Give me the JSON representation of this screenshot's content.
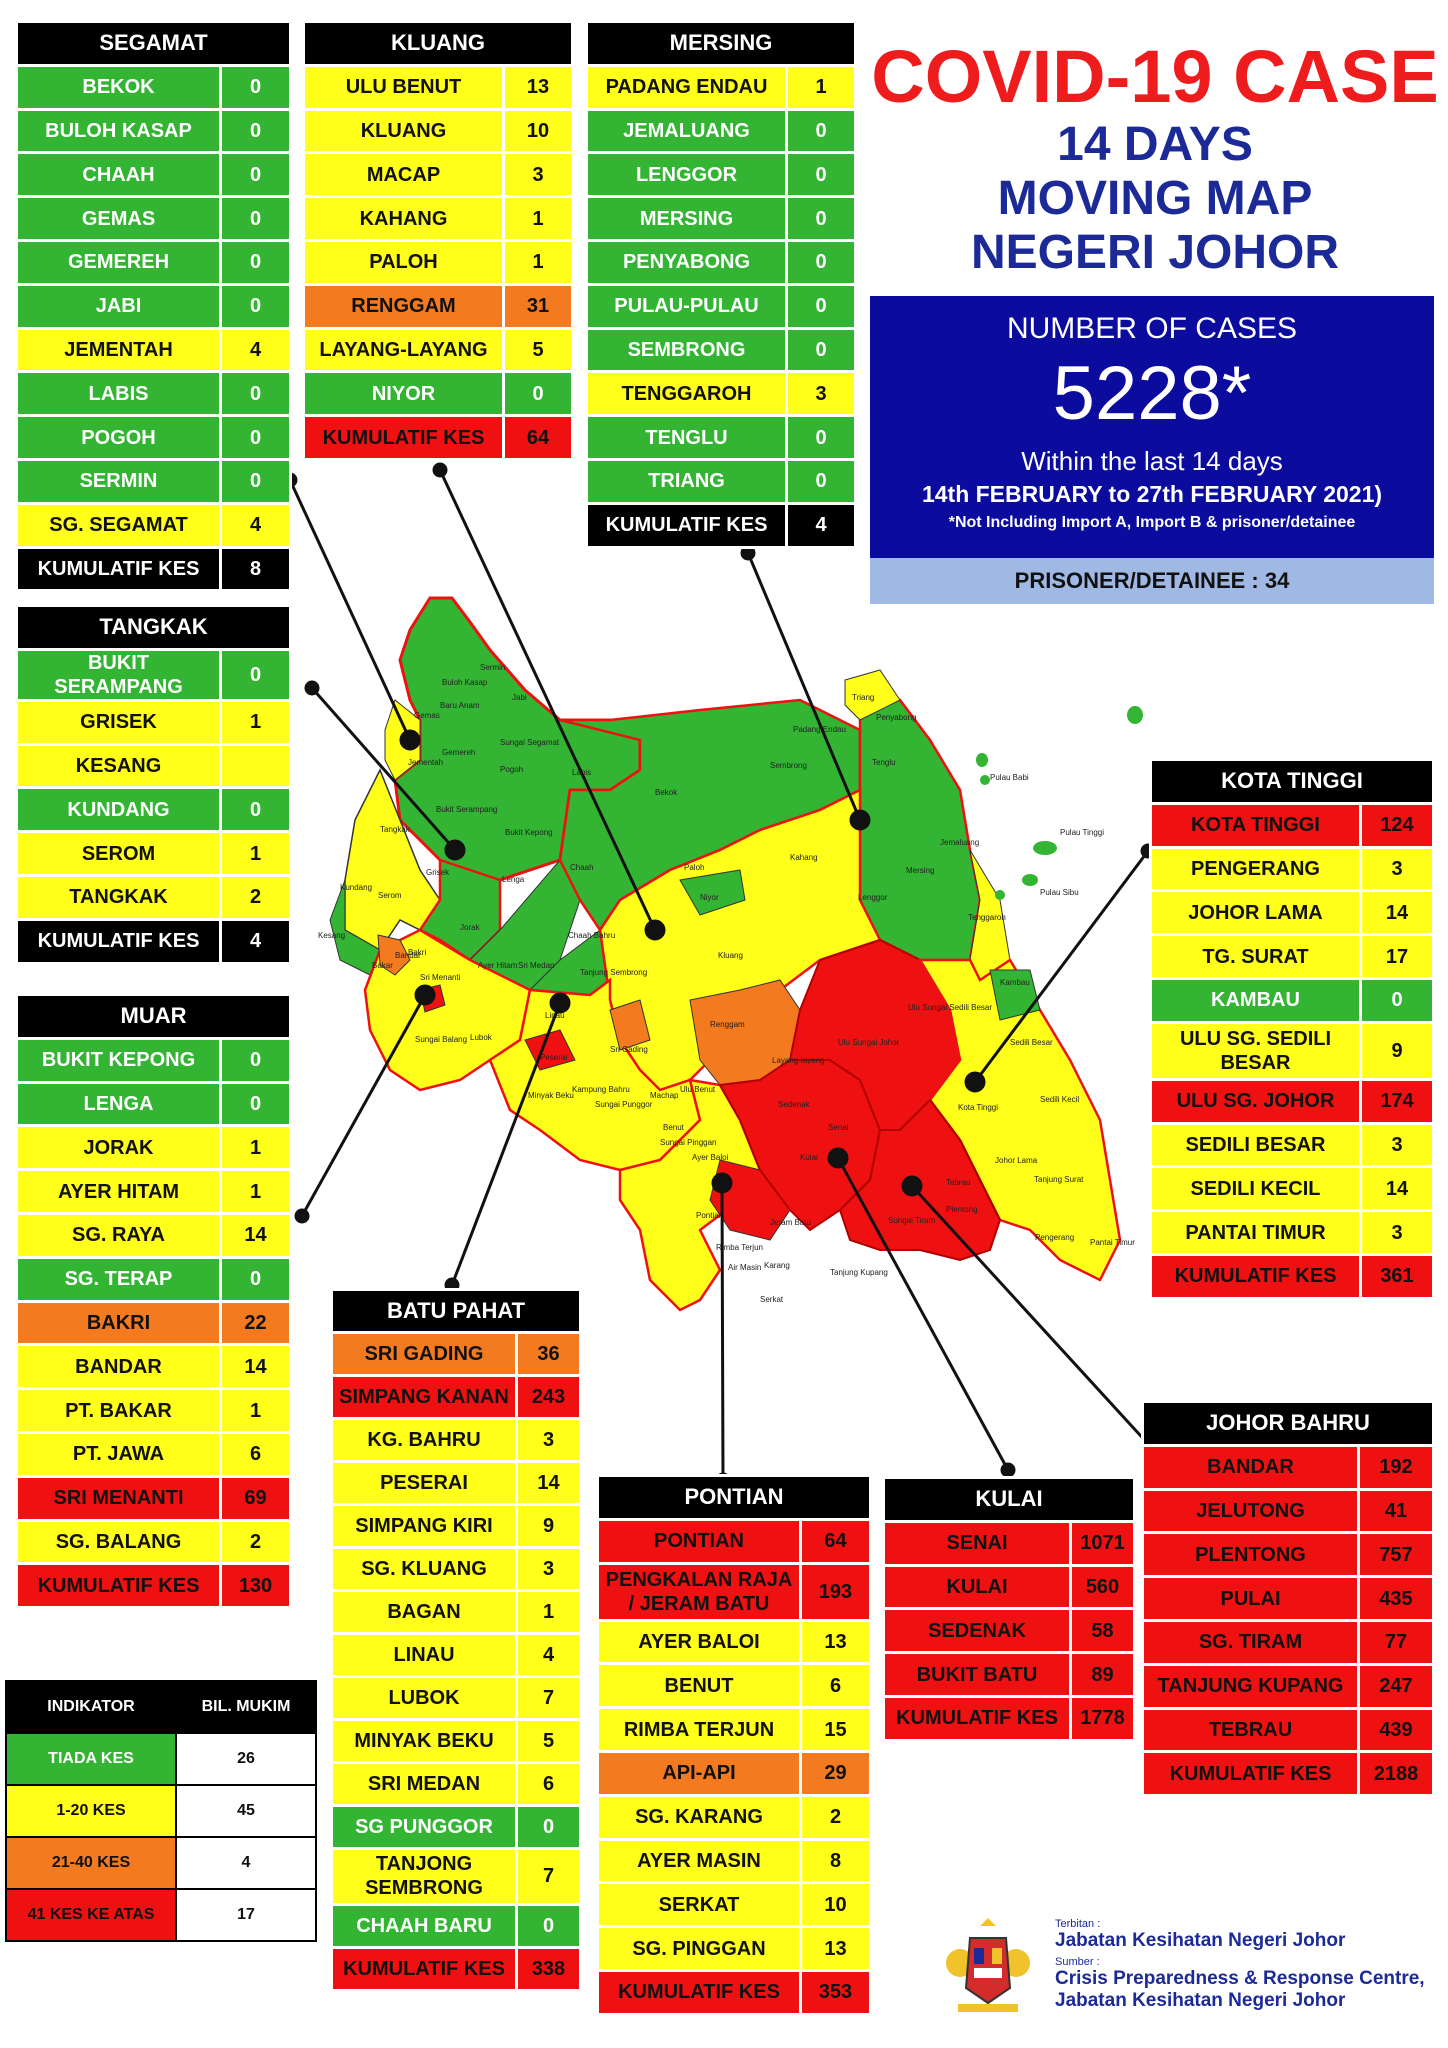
{
  "title": {
    "line1": "COVID-19 CASE",
    "line2": "14 DAYS",
    "line3": "MOVING MAP",
    "line4": "NEGERI JOHOR"
  },
  "summary": {
    "label": "NUMBER OF CASES",
    "number": "5228*",
    "within": "Within the last 14 days",
    "period": "14th FEBRUARY to 27th FEBRUARY 2021)",
    "note": "*Not Including Import A, Import B & prisoner/detainee",
    "prisoner": "PRISONER/DETAINEE : 34"
  },
  "colors": {
    "green": "#33b433",
    "yellow": "#ffff1a",
    "orange": "#f47a20",
    "red": "#ef1111",
    "black": "#000000",
    "title_red": "#ee1c1c",
    "title_blue": "#1c2a98",
    "panel_blue": "#0b0b9e"
  },
  "districts": {
    "segamat": {
      "name": "SEGAMAT",
      "rows": [
        {
          "name": "BEKOK",
          "value": "0",
          "c": "G"
        },
        {
          "name": "BULOH KASAP",
          "value": "0",
          "c": "G"
        },
        {
          "name": "CHAAH",
          "value": "0",
          "c": "G"
        },
        {
          "name": "GEMAS",
          "value": "0",
          "c": "G"
        },
        {
          "name": "GEMEREH",
          "value": "0",
          "c": "G"
        },
        {
          "name": "JABI",
          "value": "0",
          "c": "G"
        },
        {
          "name": "JEMENTAH",
          "value": "4",
          "c": "Y"
        },
        {
          "name": "LABIS",
          "value": "0",
          "c": "G"
        },
        {
          "name": "POGOH",
          "value": "0",
          "c": "G"
        },
        {
          "name": "SERMIN",
          "value": "0",
          "c": "G"
        },
        {
          "name": "SG. SEGAMAT",
          "value": "4",
          "c": "Y"
        },
        {
          "name": "KUMULATIF KES",
          "value": "8",
          "c": "B"
        }
      ]
    },
    "kluang": {
      "name": "KLUANG",
      "rows": [
        {
          "name": "ULU BENUT",
          "value": "13",
          "c": "Y"
        },
        {
          "name": "KLUANG",
          "value": "10",
          "c": "Y"
        },
        {
          "name": "MACAP",
          "value": "3",
          "c": "Y"
        },
        {
          "name": "KAHANG",
          "value": "1",
          "c": "Y"
        },
        {
          "name": "PALOH",
          "value": "1",
          "c": "Y"
        },
        {
          "name": "RENGGAM",
          "value": "31",
          "c": "O"
        },
        {
          "name": "LAYANG-LAYANG",
          "value": "5",
          "c": "Y"
        },
        {
          "name": "NIYOR",
          "value": "0",
          "c": "G"
        },
        {
          "name": "KUMULATIF KES",
          "value": "64",
          "c": "R"
        }
      ]
    },
    "mersing": {
      "name": "MERSING",
      "rows": [
        {
          "name": "PADANG ENDAU",
          "value": "1",
          "c": "Y"
        },
        {
          "name": "JEMALUANG",
          "value": "0",
          "c": "G"
        },
        {
          "name": "LENGGOR",
          "value": "0",
          "c": "G"
        },
        {
          "name": "MERSING",
          "value": "0",
          "c": "G"
        },
        {
          "name": "PENYABONG",
          "value": "0",
          "c": "G"
        },
        {
          "name": "PULAU-PULAU",
          "value": "0",
          "c": "G"
        },
        {
          "name": "SEMBRONG",
          "value": "0",
          "c": "G"
        },
        {
          "name": "TENGGAROH",
          "value": "3",
          "c": "Y"
        },
        {
          "name": "TENGLU",
          "value": "0",
          "c": "G"
        },
        {
          "name": "TRIANG",
          "value": "0",
          "c": "G"
        },
        {
          "name": "KUMULATIF KES",
          "value": "4",
          "c": "B"
        }
      ]
    },
    "tangkak": {
      "name": "TANGKAK",
      "rows": [
        {
          "name": "BUKIT SERAMPANG",
          "value": "0",
          "c": "G"
        },
        {
          "name": "GRISEK",
          "value": "1",
          "c": "Y"
        },
        {
          "name": "KESANG",
          "value": "",
          "c": "Y"
        },
        {
          "name": "KUNDANG",
          "value": "0",
          "c": "G"
        },
        {
          "name": "SEROM",
          "value": "1",
          "c": "Y"
        },
        {
          "name": "TANGKAK",
          "value": "2",
          "c": "Y"
        },
        {
          "name": "KUMULATIF KES",
          "value": "4",
          "c": "B"
        }
      ]
    },
    "muar": {
      "name": "MUAR",
      "rows": [
        {
          "name": "BUKIT KEPONG",
          "value": "0",
          "c": "G"
        },
        {
          "name": "LENGA",
          "value": "0",
          "c": "G"
        },
        {
          "name": "JORAK",
          "value": "1",
          "c": "Y"
        },
        {
          "name": "AYER HITAM",
          "value": "1",
          "c": "Y"
        },
        {
          "name": "SG. RAYA",
          "value": "14",
          "c": "Y"
        },
        {
          "name": "SG. TERAP",
          "value": "0",
          "c": "G"
        },
        {
          "name": "BAKRI",
          "value": "22",
          "c": "O"
        },
        {
          "name": "BANDAR",
          "value": "14",
          "c": "Y"
        },
        {
          "name": "PT. BAKAR",
          "value": "1",
          "c": "Y"
        },
        {
          "name": "PT. JAWA",
          "value": "6",
          "c": "Y"
        },
        {
          "name": "SRI MENANTI",
          "value": "69",
          "c": "R"
        },
        {
          "name": "SG. BALANG",
          "value": "2",
          "c": "Y"
        },
        {
          "name": "KUMULATIF KES",
          "value": "130",
          "c": "R"
        }
      ]
    },
    "batupahat": {
      "name": "BATU PAHAT",
      "rows": [
        {
          "name": "SRI GADING",
          "value": "36",
          "c": "O"
        },
        {
          "name": "SIMPANG KANAN",
          "value": "243",
          "c": "R"
        },
        {
          "name": "KG. BAHRU",
          "value": "3",
          "c": "Y"
        },
        {
          "name": "PESERAI",
          "value": "14",
          "c": "Y"
        },
        {
          "name": "SIMPANG KIRI",
          "value": "9",
          "c": "Y"
        },
        {
          "name": "SG. KLUANG",
          "value": "3",
          "c": "Y"
        },
        {
          "name": "BAGAN",
          "value": "1",
          "c": "Y"
        },
        {
          "name": "LINAU",
          "value": "4",
          "c": "Y"
        },
        {
          "name": "LUBOK",
          "value": "7",
          "c": "Y"
        },
        {
          "name": "MINYAK BEKU",
          "value": "5",
          "c": "Y"
        },
        {
          "name": "SRI MEDAN",
          "value": "6",
          "c": "Y"
        },
        {
          "name": "SG PUNGGOR",
          "value": "0",
          "c": "G"
        },
        {
          "name": "TANJONG SEMBRONG",
          "value": "7",
          "c": "Y"
        },
        {
          "name": "CHAAH BARU",
          "value": "0",
          "c": "G"
        },
        {
          "name": "KUMULATIF KES",
          "value": "338",
          "c": "R"
        }
      ]
    },
    "pontian": {
      "name": "PONTIAN",
      "rows": [
        {
          "name": "PONTIAN",
          "value": "64",
          "c": "R"
        },
        {
          "name": "PENGKALAN RAJA / JERAM BATU",
          "value": "193",
          "c": "R"
        },
        {
          "name": "AYER BALOI",
          "value": "13",
          "c": "Y"
        },
        {
          "name": "BENUT",
          "value": "6",
          "c": "Y"
        },
        {
          "name": "RIMBA TERJUN",
          "value": "15",
          "c": "Y"
        },
        {
          "name": "API-API",
          "value": "29",
          "c": "O"
        },
        {
          "name": "SG. KARANG",
          "value": "2",
          "c": "Y"
        },
        {
          "name": "AYER MASIN",
          "value": "8",
          "c": "Y"
        },
        {
          "name": "SERKAT",
          "value": "10",
          "c": "Y"
        },
        {
          "name": "SG. PINGGAN",
          "value": "13",
          "c": "Y"
        },
        {
          "name": "KUMULATIF KES",
          "value": "353",
          "c": "R"
        }
      ]
    },
    "kulai": {
      "name": "KULAI",
      "rows": [
        {
          "name": "SENAI",
          "value": "1071",
          "c": "R"
        },
        {
          "name": "KULAI",
          "value": "560",
          "c": "R"
        },
        {
          "name": "SEDENAK",
          "value": "58",
          "c": "R"
        },
        {
          "name": "BUKIT BATU",
          "value": "89",
          "c": "R"
        },
        {
          "name": "KUMULATIF KES",
          "value": "1778",
          "c": "R"
        }
      ]
    },
    "kotatinggi": {
      "name": "KOTA TINGGI",
      "rows": [
        {
          "name": "KOTA TINGGI",
          "value": "124",
          "c": "R"
        },
        {
          "name": "PENGERANG",
          "value": "3",
          "c": "Y"
        },
        {
          "name": "JOHOR LAMA",
          "value": "14",
          "c": "Y"
        },
        {
          "name": "TG. SURAT",
          "value": "17",
          "c": "Y"
        },
        {
          "name": "KAMBAU",
          "value": "0",
          "c": "G"
        },
        {
          "name": "ULU SG. SEDILI BESAR",
          "value": "9",
          "c": "Y"
        },
        {
          "name": "ULU  SG. JOHOR",
          "value": "174",
          "c": "R"
        },
        {
          "name": "SEDILI BESAR",
          "value": "3",
          "c": "Y"
        },
        {
          "name": "SEDILI KECIL",
          "value": "14",
          "c": "Y"
        },
        {
          "name": "PANTAI TIMUR",
          "value": "3",
          "c": "Y"
        },
        {
          "name": "KUMULATIF KES",
          "value": "361",
          "c": "R"
        }
      ]
    },
    "johorbahru": {
      "name": "JOHOR BAHRU",
      "rows": [
        {
          "name": "BANDAR",
          "value": "192",
          "c": "R"
        },
        {
          "name": "JELUTONG",
          "value": "41",
          "c": "R"
        },
        {
          "name": "PLENTONG",
          "value": "757",
          "c": "R"
        },
        {
          "name": "PULAI",
          "value": "435",
          "c": "R"
        },
        {
          "name": "SG. TIRAM",
          "value": "77",
          "c": "R"
        },
        {
          "name": "TANJUNG KUPANG",
          "value": "247",
          "c": "R"
        },
        {
          "name": "TEBRAU",
          "value": "439",
          "c": "R"
        },
        {
          "name": "KUMULATIF KES",
          "value": "2188",
          "c": "R"
        }
      ]
    }
  },
  "legend": {
    "col1": "INDIKATOR",
    "col2": "BIL. MUKIM",
    "rows": [
      {
        "label": "TIADA KES",
        "count": "26",
        "c": "G"
      },
      {
        "label": "1-20 KES",
        "count": "45",
        "c": "Y"
      },
      {
        "label": "21-40 KES",
        "count": "4",
        "c": "O"
      },
      {
        "label": "41 KES KE ATAS",
        "count": "17",
        "c": "R"
      }
    ]
  },
  "map": {
    "labels": {
      "gemas": "Gemas",
      "buloh_kasap": "Buloh Kasap",
      "sermin": "Sermin",
      "jabi": "Jabi",
      "baru_anam": "Baru Anam",
      "jementah": "Jementah",
      "gemereh": "Gemereh",
      "sungai_segamat": "Sungai Segamat",
      "pogoh": "Pogoh",
      "labis": "Labis",
      "bekok": "Bekok",
      "chaah": "Chaah",
      "padang_endau": "Padang Endau",
      "triang": "Triang",
      "penyabong": "Penyabong",
      "tenglu": "Tenglu",
      "sembrong": "Sembrong",
      "pulau_babi": "Pulau Babi",
      "pulau_tinggi": "Pulau Tinggi",
      "pulau_sibu": "Pulau Sibu",
      "jemaluang": "Jemaluang",
      "mersing": "Mersing",
      "lenggor": "Lenggor",
      "tenggaroh": "Tenggaroh",
      "kahang": "Kahang",
      "paloh": "Paloh",
      "niyor": "Niyor",
      "kluang": "Kluang",
      "renggam": "Renggam",
      "layang_layang": "Layang-layang",
      "ulu_benut": "Ulu Benut",
      "machap": "Machap",
      "tangkak": "Tangkak",
      "bukit_serampang": "Bukit Serampang",
      "bukit_kepong": "Bukit Kepong",
      "grisek": "Grisek",
      "lenga": "Lenga",
      "serom": "Serom",
      "kundang": "Kundang",
      "kesang": "Kesang",
      "jorak": "Jorak",
      "bakri": "Bakri",
      "sri_menanti": "Sri Menanti",
      "ayer_hitam": "Ayer Hitam",
      "chaah_bahru": "Chaah Bahru",
      "sri_medan": "Sri Medan",
      "tanjung_sembrong": "Tanjung Sembrong",
      "sri_gading": "Sri Gading",
      "sungai_balang": "Sungai Balang",
      "sungai_punggor": "Sungai Punggor",
      "minyak_beku": "Minyak Beku",
      "kampung_bahru": "Kampung Bahru",
      "peserai": "Peserai",
      "lubok": "Lubok",
      "linau": "Linau",
      "benut": "Benut",
      "sungai_pinggan": "Sungai Pinggan",
      "ayer_baloi": "Ayer Baloi",
      "pontian": "Pontian",
      "rimba_terjun": "Rimba Terjun",
      "serkat": "Serkat",
      "air_masin": "Air Masin",
      "karang": "Karang",
      "jeram_batu": "Jeram Batu",
      "sedenak": "Sedenak",
      "kulai": "Kulai",
      "senai": "Senai",
      "ulu_sungai_johor": "Ulu Sungai Johor",
      "ulu_sungai_sedili": "Ulu Sungai Sedili Besar",
      "kota_tinggi": "Kota Tinggi",
      "sedili_besar": "Sedili Besar",
      "sedili_kecil": "Sedili Kecil",
      "johor_lama": "Johor Lama",
      "tanjung_surat": "Tanjung Surat",
      "pengerang": "Pengerang",
      "pantai_timur": "Pantai Timur",
      "kambau": "Kambau",
      "tebrau": "Tebrau",
      "plentong": "Plentong",
      "tanjung_kupang": "Tanjung Kupang",
      "sungai_tiram": "Sungai Tiram",
      "bandar": "Bandar",
      "bakar": "Bakar"
    }
  },
  "footer": {
    "terbitan_label": "Terbitan :",
    "terbitan": "Jabatan Kesihatan Negeri Johor",
    "sumber_label": "Sumber :",
    "sumber1": "Crisis Preparedness & Response Centre,",
    "sumber2": "Jabatan Kesihatan Negeri Johor"
  }
}
